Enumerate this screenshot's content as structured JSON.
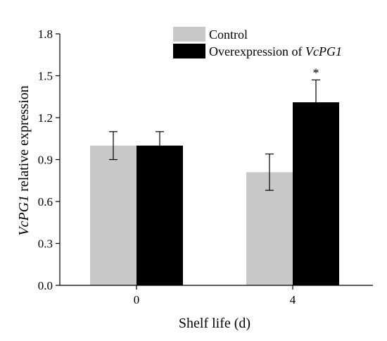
{
  "chart_data": {
    "type": "bar",
    "categories": [
      "0",
      "4"
    ],
    "series": [
      {
        "name": "Control",
        "color": "#c8c8c8",
        "values": [
          1.0,
          0.81
        ],
        "errors": [
          0.1,
          0.13
        ],
        "significance": [
          "",
          ""
        ]
      },
      {
        "name_plain": "Overexpression of ",
        "name_gene": "VcPG1",
        "color": "#000000",
        "values": [
          1.0,
          1.31
        ],
        "errors": [
          0.1,
          0.16
        ],
        "significance": [
          "",
          "*"
        ]
      }
    ],
    "xlabel": "Shelf life (d)",
    "ylabel_gene": "VcPG1",
    "ylabel_rest": " relative expression",
    "ylim": [
      0,
      1.8
    ],
    "yticks": [
      "0.0",
      "0.3",
      "0.6",
      "0.9",
      "1.2",
      "1.5",
      "1.8"
    ],
    "legend_position": "top-right",
    "grid": false
  }
}
